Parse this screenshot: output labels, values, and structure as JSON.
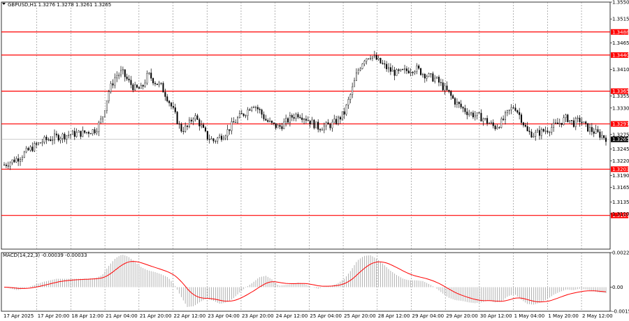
{
  "header": {
    "symbol_line": "GBPUSD,H1  1.3276 1.3278 1.3261 1.3265",
    "macd_label": "MACD(14,22,3) -0.00039 -0.00033"
  },
  "colors": {
    "level_line": "#ff0000",
    "candle": "#000000",
    "macd_hist": "#a0a0a0",
    "macd_signal": "#ff0000",
    "grid": "#808080",
    "price_tag_bg": "#ff0000",
    "current_tag_bg": "#000000"
  },
  "chart_data": [
    {
      "type": "candlestick",
      "symbol": "GBPUSD",
      "timeframe": "H1",
      "ylim": [
        1.3037,
        1.355
      ],
      "grid": true,
      "y_ticks": [
        1.355,
        1.3515,
        1.3465,
        1.341,
        1.3355,
        1.333,
        1.3275,
        1.3245,
        1.322,
        1.319,
        1.3165,
        1.3135,
        1.311
      ],
      "x_ticks": [
        "17 Apr 2025",
        "17 Apr 20:00",
        "18 Apr 12:00",
        "21 Apr 04:00",
        "21 Apr 20:00",
        "22 Apr 12:00",
        "23 Apr 04:00",
        "23 Apr 20:00",
        "24 Apr 12:00",
        "25 Apr 04:00",
        "25 Apr 20:00",
        "28 Apr 12:00",
        "29 Apr 04:00",
        "29 Apr 20:00",
        "30 Apr 12:00",
        "1 May 04:00",
        "1 May 20:00",
        "2 May 12:00"
      ],
      "levels": [
        1.3488,
        1.344,
        1.3365,
        1.3297,
        1.3203,
        1.3107
      ],
      "current_price": 1.3265,
      "series_anchors": [
        {
          "x": 0,
          "y": 1.3212
        },
        {
          "x": 2,
          "y": 1.3225
        },
        {
          "x": 4,
          "y": 1.3245
        },
        {
          "x": 6,
          "y": 1.3262
        },
        {
          "x": 8,
          "y": 1.327
        },
        {
          "x": 10,
          "y": 1.3275
        },
        {
          "x": 12,
          "y": 1.3278
        },
        {
          "x": 14,
          "y": 1.3285
        },
        {
          "x": 15,
          "y": 1.331
        },
        {
          "x": 16,
          "y": 1.3365
        },
        {
          "x": 17,
          "y": 1.3395
        },
        {
          "x": 18,
          "y": 1.3405
        },
        {
          "x": 19,
          "y": 1.3385
        },
        {
          "x": 20,
          "y": 1.337
        },
        {
          "x": 21,
          "y": 1.337
        },
        {
          "x": 22,
          "y": 1.34
        },
        {
          "x": 23,
          "y": 1.3385
        },
        {
          "x": 24,
          "y": 1.3375
        },
        {
          "x": 25,
          "y": 1.335
        },
        {
          "x": 26,
          "y": 1.332
        },
        {
          "x": 27,
          "y": 1.3285
        },
        {
          "x": 28,
          "y": 1.329
        },
        {
          "x": 29,
          "y": 1.3315
        },
        {
          "x": 30,
          "y": 1.3295
        },
        {
          "x": 31,
          "y": 1.327
        },
        {
          "x": 32,
          "y": 1.3262
        },
        {
          "x": 33,
          "y": 1.327
        },
        {
          "x": 34,
          "y": 1.328
        },
        {
          "x": 35,
          "y": 1.3298
        },
        {
          "x": 36,
          "y": 1.3312
        },
        {
          "x": 37,
          "y": 1.3322
        },
        {
          "x": 38,
          "y": 1.334
        },
        {
          "x": 39,
          "y": 1.3325
        },
        {
          "x": 40,
          "y": 1.3305
        },
        {
          "x": 41,
          "y": 1.3295
        },
        {
          "x": 42,
          "y": 1.329
        },
        {
          "x": 43,
          "y": 1.33
        },
        {
          "x": 44,
          "y": 1.3312
        },
        {
          "x": 45,
          "y": 1.3318
        },
        {
          "x": 46,
          "y": 1.331
        },
        {
          "x": 47,
          "y": 1.33
        },
        {
          "x": 48,
          "y": 1.329
        },
        {
          "x": 49,
          "y": 1.3292
        },
        {
          "x": 50,
          "y": 1.3295
        },
        {
          "x": 51,
          "y": 1.3305
        },
        {
          "x": 52,
          "y": 1.332
        },
        {
          "x": 53,
          "y": 1.336
        },
        {
          "x": 54,
          "y": 1.3405
        },
        {
          "x": 55,
          "y": 1.3432
        },
        {
          "x": 56,
          "y": 1.344
        },
        {
          "x": 57,
          "y": 1.343
        },
        {
          "x": 58,
          "y": 1.3418
        },
        {
          "x": 59,
          "y": 1.3408
        },
        {
          "x": 60,
          "y": 1.3402
        },
        {
          "x": 61,
          "y": 1.3405
        },
        {
          "x": 62,
          "y": 1.341
        },
        {
          "x": 63,
          "y": 1.3412
        },
        {
          "x": 64,
          "y": 1.3402
        },
        {
          "x": 65,
          "y": 1.3395
        },
        {
          "x": 66,
          "y": 1.339
        },
        {
          "x": 67,
          "y": 1.3375
        },
        {
          "x": 68,
          "y": 1.336
        },
        {
          "x": 69,
          "y": 1.3342
        },
        {
          "x": 70,
          "y": 1.333
        },
        {
          "x": 71,
          "y": 1.332
        },
        {
          "x": 72,
          "y": 1.3315
        },
        {
          "x": 73,
          "y": 1.331
        },
        {
          "x": 74,
          "y": 1.33
        },
        {
          "x": 75,
          "y": 1.329
        },
        {
          "x": 76,
          "y": 1.33
        },
        {
          "x": 77,
          "y": 1.332
        },
        {
          "x": 78,
          "y": 1.3335
        },
        {
          "x": 79,
          "y": 1.331
        },
        {
          "x": 80,
          "y": 1.328
        },
        {
          "x": 81,
          "y": 1.3275
        },
        {
          "x": 82,
          "y": 1.328
        },
        {
          "x": 83,
          "y": 1.3285
        },
        {
          "x": 84,
          "y": 1.3292
        },
        {
          "x": 85,
          "y": 1.33
        },
        {
          "x": 86,
          "y": 1.331
        },
        {
          "x": 87,
          "y": 1.3298
        },
        {
          "x": 88,
          "y": 1.3305
        },
        {
          "x": 89,
          "y": 1.329
        },
        {
          "x": 90,
          "y": 1.3282
        },
        {
          "x": 91,
          "y": 1.3275
        },
        {
          "x": 92,
          "y": 1.3268
        }
      ]
    },
    {
      "type": "bar",
      "title": "MACD(14,22,3) -0.00039 -0.00033",
      "ylim": [
        -0.00158,
        0.00227
      ],
      "y_ticks": [
        0.00227,
        0.0,
        -0.00158
      ],
      "main_anchors": [
        {
          "x": 0,
          "y": 0.0
        },
        {
          "x": 2,
          "y": -0.0002
        },
        {
          "x": 4,
          "y": 5e-05
        },
        {
          "x": 6,
          "y": 0.00035
        },
        {
          "x": 8,
          "y": 0.00055
        },
        {
          "x": 10,
          "y": 0.00055
        },
        {
          "x": 12,
          "y": 0.00055
        },
        {
          "x": 14,
          "y": 0.0006
        },
        {
          "x": 15,
          "y": 0.0008
        },
        {
          "x": 16,
          "y": 0.0014
        },
        {
          "x": 17,
          "y": 0.0019
        },
        {
          "x": 18,
          "y": 0.00215
        },
        {
          "x": 19,
          "y": 0.002
        },
        {
          "x": 20,
          "y": 0.00165
        },
        {
          "x": 21,
          "y": 0.0013
        },
        {
          "x": 22,
          "y": 0.0011
        },
        {
          "x": 23,
          "y": 0.001
        },
        {
          "x": 24,
          "y": 0.00085
        },
        {
          "x": 25,
          "y": 0.00065
        },
        {
          "x": 26,
          "y": 0.0002
        },
        {
          "x": 27,
          "y": -0.0006
        },
        {
          "x": 28,
          "y": -0.0013
        },
        {
          "x": 29,
          "y": -0.00125
        },
        {
          "x": 30,
          "y": -0.00095
        },
        {
          "x": 31,
          "y": -0.00075
        },
        {
          "x": 32,
          "y": -0.0009
        },
        {
          "x": 33,
          "y": -0.0011
        },
        {
          "x": 34,
          "y": -0.001
        },
        {
          "x": 35,
          "y": -0.00075
        },
        {
          "x": 36,
          "y": -0.00035
        },
        {
          "x": 37,
          "y": 0.0
        },
        {
          "x": 38,
          "y": 0.0003
        },
        {
          "x": 39,
          "y": 0.00065
        },
        {
          "x": 40,
          "y": 0.00075
        },
        {
          "x": 41,
          "y": 0.0005
        },
        {
          "x": 42,
          "y": 0.0001
        },
        {
          "x": 43,
          "y": 0.00015
        },
        {
          "x": 44,
          "y": 0.0002
        },
        {
          "x": 45,
          "y": 0.0003
        },
        {
          "x": 46,
          "y": 0.0002
        },
        {
          "x": 47,
          "y": 0.0
        },
        {
          "x": 48,
          "y": -0.0001
        },
        {
          "x": 49,
          "y": 5e-05
        },
        {
          "x": 50,
          "y": 0.0001
        },
        {
          "x": 51,
          "y": 0.00025
        },
        {
          "x": 52,
          "y": 0.00055
        },
        {
          "x": 53,
          "y": 0.0011
        },
        {
          "x": 54,
          "y": 0.00175
        },
        {
          "x": 55,
          "y": 0.00205
        },
        {
          "x": 56,
          "y": 0.0021
        },
        {
          "x": 57,
          "y": 0.00185
        },
        {
          "x": 58,
          "y": 0.0015
        },
        {
          "x": 59,
          "y": 0.0011
        },
        {
          "x": 60,
          "y": 0.0008
        },
        {
          "x": 61,
          "y": 0.00055
        },
        {
          "x": 62,
          "y": 0.00045
        },
        {
          "x": 63,
          "y": 0.00045
        },
        {
          "x": 64,
          "y": 0.0004
        },
        {
          "x": 65,
          "y": 0.0002
        },
        {
          "x": 66,
          "y": -5e-05
        },
        {
          "x": 67,
          "y": -0.0004
        },
        {
          "x": 68,
          "y": -0.0007
        },
        {
          "x": 69,
          "y": -0.00085
        },
        {
          "x": 70,
          "y": -0.0009
        },
        {
          "x": 71,
          "y": -0.001
        },
        {
          "x": 72,
          "y": -0.00105
        },
        {
          "x": 73,
          "y": -0.001
        },
        {
          "x": 74,
          "y": -0.00085
        },
        {
          "x": 75,
          "y": -0.001
        },
        {
          "x": 76,
          "y": -0.00095
        },
        {
          "x": 77,
          "y": -0.0006
        },
        {
          "x": 78,
          "y": -0.00045
        },
        {
          "x": 79,
          "y": -0.0008
        },
        {
          "x": 80,
          "y": -0.0011
        },
        {
          "x": 81,
          "y": -0.00115
        },
        {
          "x": 82,
          "y": -0.001
        },
        {
          "x": 83,
          "y": -0.0008
        },
        {
          "x": 84,
          "y": -0.0005
        },
        {
          "x": 85,
          "y": -0.0003
        },
        {
          "x": 86,
          "y": -0.00015
        },
        {
          "x": 87,
          "y": -0.0002
        },
        {
          "x": 88,
          "y": -0.0001
        },
        {
          "x": 89,
          "y": -0.00015
        },
        {
          "x": 90,
          "y": -0.00025
        },
        {
          "x": 91,
          "y": -0.00035
        },
        {
          "x": 92,
          "y": -0.00039
        }
      ]
    }
  ]
}
